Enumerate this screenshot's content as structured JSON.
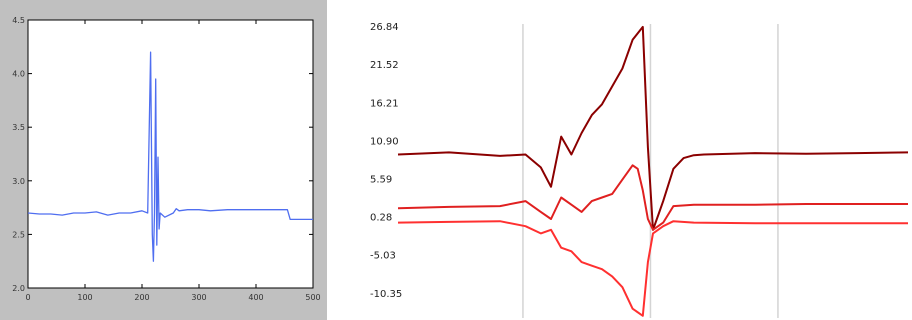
{
  "chart_data": [
    {
      "type": "line",
      "title": "",
      "xlabel": "",
      "ylabel": "",
      "xlim": [
        0,
        500
      ],
      "ylim": [
        2.0,
        4.5
      ],
      "xticks": [
        0,
        100,
        200,
        300,
        400,
        500
      ],
      "xtick_labels": [
        "0",
        "100",
        "200",
        "300",
        "400",
        "500"
      ],
      "yticks": [
        2.0,
        2.5,
        3.0,
        3.5,
        4.0,
        4.5
      ],
      "ytick_labels": [
        "2.0",
        "2.5",
        "3.0",
        "3.5",
        "4.0",
        "4.5"
      ],
      "grid": false,
      "series": [
        {
          "color": "#4f6ef0",
          "x": [
            0,
            20,
            40,
            60,
            80,
            100,
            120,
            140,
            160,
            180,
            200,
            210,
            215,
            218,
            220,
            222,
            224,
            226,
            228,
            230,
            232,
            240,
            255,
            260,
            265,
            280,
            300,
            320,
            350,
            380,
            420,
            455,
            460,
            480,
            500
          ],
          "y": [
            2.7,
            2.69,
            2.69,
            2.68,
            2.7,
            2.7,
            2.71,
            2.68,
            2.7,
            2.7,
            2.72,
            2.7,
            4.2,
            2.5,
            2.25,
            2.7,
            3.95,
            2.4,
            3.22,
            2.55,
            2.7,
            2.66,
            2.7,
            2.74,
            2.72,
            2.73,
            2.73,
            2.72,
            2.73,
            2.73,
            2.73,
            2.73,
            2.64,
            2.64,
            2.64
          ]
        }
      ]
    },
    {
      "type": "line",
      "title": "",
      "xlabel": "",
      "ylabel": "",
      "xlim": [
        0,
        100
      ],
      "ylim": [
        -13.8,
        27.2
      ],
      "yticks": [
        26.84,
        21.52,
        16.21,
        10.9,
        5.59,
        0.28,
        -5.03,
        -10.35
      ],
      "ytick_labels": [
        "26.84",
        "21.52",
        "16.21",
        "10.90",
        "5.59",
        "0.28",
        "-5.03",
        "-10.35"
      ],
      "xgrid": [
        24.5,
        49.5,
        74.5
      ],
      "grid": true,
      "series": [
        {
          "color": "#8b0000",
          "x": [
            0,
            10,
            20,
            25,
            28,
            30,
            32,
            34,
            36,
            38,
            40,
            42,
            44,
            46,
            48,
            49,
            50,
            51,
            52,
            54,
            56,
            58,
            60,
            70,
            80,
            90,
            100
          ],
          "y": [
            9.0,
            9.3,
            8.8,
            9.0,
            7.2,
            4.5,
            11.5,
            9.0,
            12.0,
            14.5,
            16.0,
            18.5,
            21.0,
            25.0,
            26.8,
            10.0,
            -1.5,
            0.5,
            2.5,
            7.0,
            8.5,
            8.9,
            9.0,
            9.2,
            9.1,
            9.2,
            9.3
          ]
        },
        {
          "color": "#e02020",
          "x": [
            0,
            10,
            20,
            25,
            28,
            30,
            32,
            34,
            36,
            38,
            40,
            42,
            44,
            46,
            47,
            48,
            49,
            50,
            52,
            54,
            58,
            70,
            80,
            90,
            100
          ],
          "y": [
            1.5,
            1.7,
            1.8,
            2.5,
            1.0,
            0.0,
            3.0,
            2.0,
            1.0,
            2.5,
            3.0,
            3.5,
            5.5,
            7.5,
            7.0,
            4.0,
            0.0,
            -1.5,
            -0.5,
            1.8,
            2.0,
            2.0,
            2.1,
            2.1,
            2.1
          ]
        },
        {
          "color": "#ff3030",
          "x": [
            0,
            10,
            20,
            25,
            28,
            30,
            32,
            34,
            36,
            38,
            40,
            42,
            44,
            46,
            48,
            49,
            50,
            52,
            54,
            58,
            70,
            80,
            90,
            100
          ],
          "y": [
            -0.5,
            -0.4,
            -0.3,
            -1.0,
            -2.0,
            -1.5,
            -4.0,
            -4.5,
            -6.0,
            -6.5,
            -7.0,
            -8.0,
            -9.5,
            -12.5,
            -13.5,
            -6.0,
            -2.0,
            -1.0,
            -0.3,
            -0.5,
            -0.6,
            -0.6,
            -0.6,
            -0.6
          ]
        }
      ]
    }
  ]
}
